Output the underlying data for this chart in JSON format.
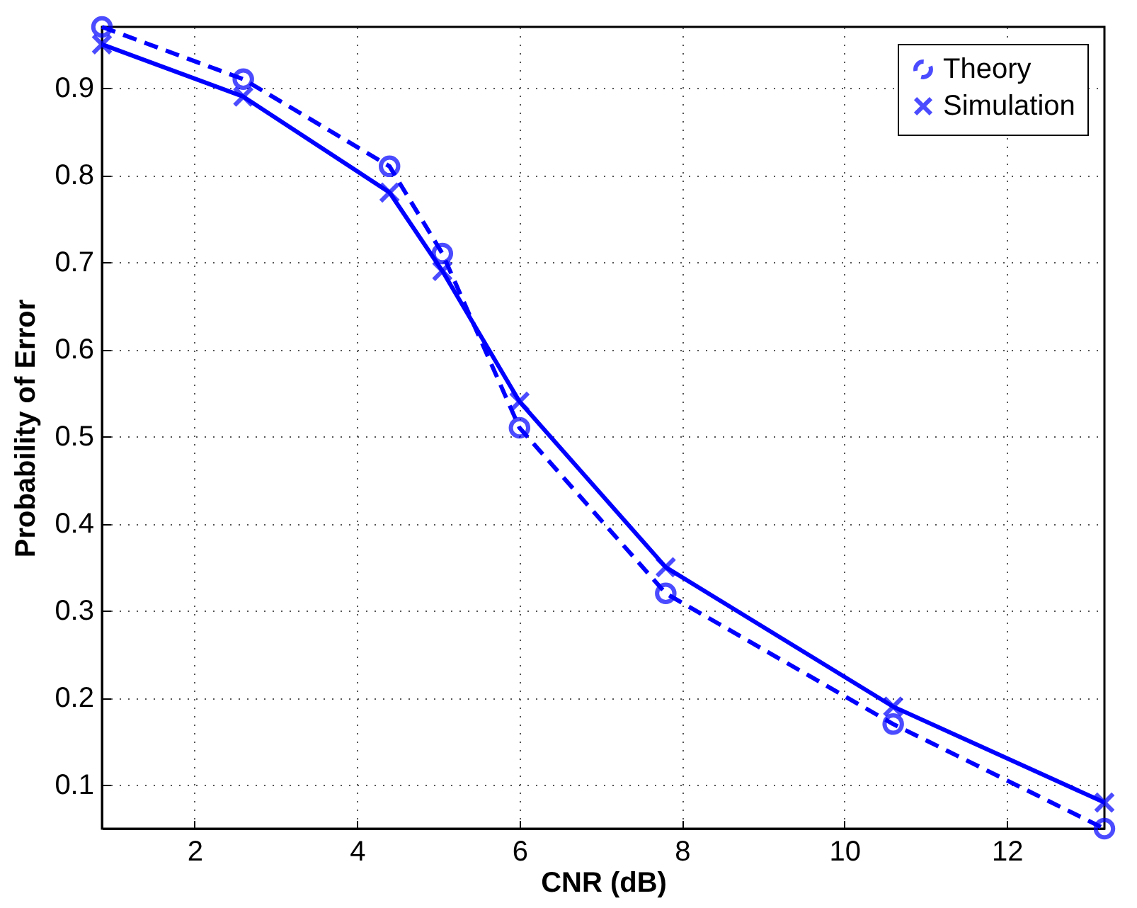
{
  "chart_data": {
    "type": "line",
    "xlabel": "CNR (dB)",
    "ylabel": "Probability of Error",
    "x": [
      0.86,
      2.6,
      4.4,
      5.05,
      6.0,
      7.8,
      10.6,
      13.2
    ],
    "series": [
      {
        "name": "Theory",
        "color": "#0000ff",
        "marker": "circle",
        "line_style": "dashed",
        "values": [
          0.97,
          0.91,
          0.81,
          0.71,
          0.51,
          0.32,
          0.17,
          0.05
        ]
      },
      {
        "name": "Simulation",
        "color": "#0000ff",
        "marker": "cross",
        "line_style": "solid",
        "values": [
          0.95,
          0.89,
          0.78,
          0.69,
          0.54,
          0.35,
          0.19,
          0.08
        ]
      }
    ],
    "xlim": [
      0.86,
      13.2
    ],
    "xticks": [
      2,
      4,
      6,
      8,
      10,
      12
    ],
    "ylim": [
      0.05,
      0.97
    ],
    "yticks": [
      0.1,
      0.2,
      0.3,
      0.4,
      0.5,
      0.6,
      0.7,
      0.8,
      0.9
    ],
    "grid": true,
    "legend": "top right"
  }
}
